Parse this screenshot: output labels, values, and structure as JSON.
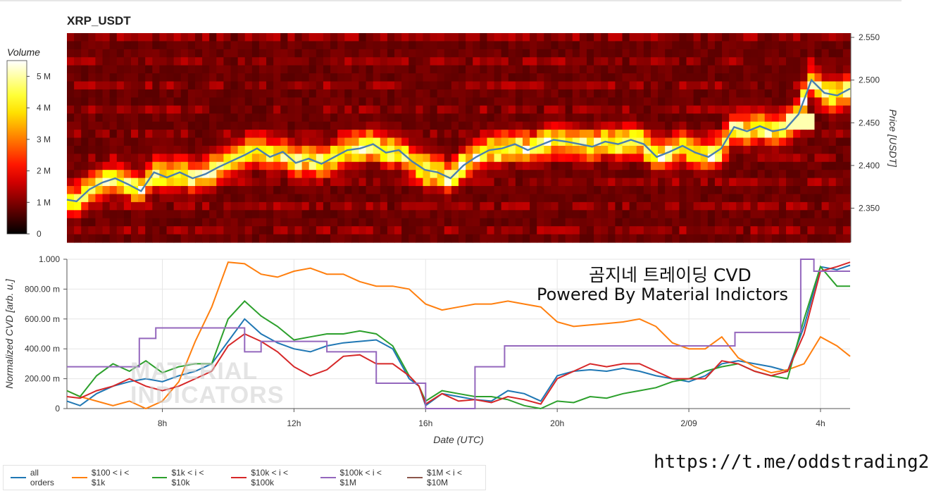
{
  "title": "XRP_USDT",
  "colorbar": {
    "title": "Volume",
    "ticks": [
      "5 M",
      "4 M",
      "3 M",
      "2 M",
      "1 M",
      "0"
    ],
    "tick_values": [
      5,
      4,
      3,
      2,
      1,
      0
    ]
  },
  "annotation": {
    "line1": "곰지네 트레이딩 CVD",
    "line2": "Powered By Material Indictors"
  },
  "watermark": {
    "line1": "MATERIAL",
    "line2": "INDICATORS"
  },
  "url": "https://t.me/oddstrading2",
  "colors": {
    "all_orders": "#1f77b4",
    "s100_1k": "#ff7f0e",
    "s1k_10k": "#2ca02c",
    "s10k_100k": "#d62728",
    "s100k_1m": "#9467bd",
    "s1m_10m": "#8c564b",
    "price_line": "#4a7fb0"
  },
  "chart_data": [
    {
      "type": "heatmap",
      "title": "XRP_USDT",
      "xlabel": "Date (UTC)",
      "ylabel": "Price [USDT]",
      "y_ticks": [
        "2.550",
        "2.500",
        "2.450",
        "2.400",
        "2.350"
      ],
      "y_tick_values": [
        2.55,
        2.5,
        2.45,
        2.4,
        2.35
      ],
      "ylim": [
        2.31,
        2.555
      ],
      "x_range_hours": [
        4.5,
        28.8
      ],
      "value_label": "Volume",
      "value_range": [
        0,
        5.5
      ],
      "series": [
        {
          "name": "price",
          "x": [
            4.5,
            4.8,
            5.2,
            5.6,
            6.0,
            6.4,
            6.8,
            7.2,
            7.6,
            8.0,
            8.4,
            8.8,
            9.2,
            9.6,
            10.0,
            10.4,
            10.8,
            11.2,
            11.6,
            12.0,
            12.4,
            12.8,
            13.2,
            13.6,
            14.0,
            14.4,
            14.8,
            15.2,
            15.6,
            16.0,
            16.4,
            16.8,
            17.2,
            17.6,
            18.0,
            18.4,
            18.8,
            19.2,
            19.6,
            20.0,
            20.4,
            20.8,
            21.2,
            21.6,
            22.0,
            22.4,
            22.8,
            23.2,
            23.6,
            24.0,
            24.4,
            24.8,
            25.2,
            25.6,
            26.0,
            26.4,
            26.8,
            27.2,
            27.6,
            28.0,
            28.4,
            28.8
          ],
          "y": [
            2.36,
            2.358,
            2.372,
            2.38,
            2.385,
            2.378,
            2.37,
            2.392,
            2.386,
            2.392,
            2.385,
            2.39,
            2.398,
            2.405,
            2.412,
            2.42,
            2.41,
            2.416,
            2.403,
            2.408,
            2.402,
            2.41,
            2.418,
            2.42,
            2.425,
            2.415,
            2.418,
            2.405,
            2.395,
            2.392,
            2.385,
            2.4,
            2.41,
            2.418,
            2.42,
            2.425,
            2.418,
            2.424,
            2.43,
            2.428,
            2.425,
            2.422,
            2.428,
            2.425,
            2.43,
            2.425,
            2.41,
            2.416,
            2.423,
            2.415,
            2.41,
            2.42,
            2.445,
            2.44,
            2.446,
            2.44,
            2.443,
            2.46,
            2.5,
            2.485,
            2.482,
            2.49
          ]
        }
      ]
    },
    {
      "type": "line",
      "xlabel": "Date (UTC)",
      "ylabel": "Normalized CVD [arb. u.]",
      "x_ticks": [
        "8h",
        "12h",
        "16h",
        "20h",
        "2/09",
        "4h"
      ],
      "x_tick_values": [
        8,
        12,
        16,
        20,
        24,
        28
      ],
      "y_ticks": [
        "1.000",
        "800.00 m",
        "600.00 m",
        "400.00 m",
        "200.00 m",
        "0"
      ],
      "y_tick_values": [
        1,
        0.8,
        0.6,
        0.4,
        0.2,
        0
      ],
      "ylim": [
        0,
        1
      ],
      "xlim": [
        5.1,
        28.9
      ],
      "grid": true,
      "legend_position": "bottom",
      "series": [
        {
          "name": "all orders",
          "key": "all_orders",
          "x": [
            5.1,
            5.5,
            6.0,
            6.5,
            7.0,
            7.5,
            8.0,
            8.5,
            9.0,
            9.5,
            10.0,
            10.5,
            11.0,
            11.5,
            12.0,
            12.5,
            13.0,
            13.5,
            14.0,
            14.5,
            15.0,
            15.5,
            15.8,
            16.0,
            16.5,
            17.0,
            17.5,
            18.0,
            18.5,
            19.0,
            19.5,
            20.0,
            20.5,
            21.0,
            21.5,
            22.0,
            22.5,
            23.0,
            23.5,
            24.0,
            24.5,
            25.0,
            25.5,
            26.0,
            26.5,
            27.0,
            27.5,
            28.0,
            28.5,
            28.9
          ],
          "y": [
            0.05,
            0.02,
            0.1,
            0.15,
            0.18,
            0.2,
            0.18,
            0.22,
            0.25,
            0.3,
            0.45,
            0.6,
            0.5,
            0.44,
            0.4,
            0.38,
            0.42,
            0.44,
            0.45,
            0.46,
            0.4,
            0.2,
            0.15,
            0.02,
            0.1,
            0.08,
            0.06,
            0.05,
            0.12,
            0.1,
            0.05,
            0.22,
            0.25,
            0.26,
            0.25,
            0.27,
            0.25,
            0.22,
            0.2,
            0.18,
            0.22,
            0.3,
            0.32,
            0.3,
            0.28,
            0.25,
            0.55,
            0.95,
            0.93,
            0.96
          ]
        },
        {
          "name": "$100 < i < $1k",
          "key": "s100_1k",
          "x": [
            5.1,
            5.5,
            6.0,
            6.5,
            7.0,
            7.5,
            8.0,
            8.5,
            9.0,
            9.5,
            10.0,
            10.5,
            11.0,
            11.5,
            12.0,
            12.5,
            13.0,
            13.5,
            14.0,
            14.5,
            15.0,
            15.5,
            16.0,
            16.5,
            17.0,
            17.5,
            18.0,
            18.5,
            19.0,
            19.5,
            20.0,
            20.5,
            21.0,
            21.5,
            22.0,
            22.5,
            23.0,
            23.5,
            24.0,
            24.5,
            25.0,
            25.5,
            26.0,
            26.5,
            27.0,
            27.5,
            28.0,
            28.5,
            28.9
          ],
          "y": [
            0.12,
            0.08,
            0.05,
            0.02,
            0.05,
            0.0,
            0.05,
            0.18,
            0.45,
            0.68,
            0.98,
            0.97,
            0.9,
            0.88,
            0.92,
            0.94,
            0.9,
            0.9,
            0.85,
            0.82,
            0.82,
            0.8,
            0.7,
            0.66,
            0.68,
            0.7,
            0.7,
            0.72,
            0.7,
            0.68,
            0.58,
            0.55,
            0.56,
            0.57,
            0.58,
            0.6,
            0.55,
            0.44,
            0.4,
            0.4,
            0.48,
            0.34,
            0.28,
            0.24,
            0.26,
            0.3,
            0.48,
            0.42,
            0.35
          ]
        },
        {
          "name": "$1k < i < $10k",
          "key": "s1k_10k",
          "x": [
            5.1,
            5.5,
            6.0,
            6.5,
            7.0,
            7.5,
            8.0,
            8.5,
            9.0,
            9.5,
            10.0,
            10.5,
            11.0,
            11.5,
            12.0,
            12.5,
            13.0,
            13.5,
            14.0,
            14.5,
            15.0,
            15.5,
            15.8,
            16.0,
            16.5,
            17.0,
            17.5,
            18.0,
            18.5,
            19.0,
            19.5,
            20.0,
            20.5,
            21.0,
            21.5,
            22.0,
            22.5,
            23.0,
            23.5,
            24.0,
            24.5,
            25.0,
            25.5,
            26.0,
            26.5,
            27.0,
            27.5,
            28.0,
            28.5,
            28.9
          ],
          "y": [
            0.12,
            0.08,
            0.22,
            0.3,
            0.25,
            0.32,
            0.24,
            0.28,
            0.3,
            0.3,
            0.6,
            0.72,
            0.62,
            0.55,
            0.46,
            0.48,
            0.5,
            0.5,
            0.52,
            0.5,
            0.42,
            0.22,
            0.15,
            0.05,
            0.12,
            0.1,
            0.08,
            0.08,
            0.06,
            0.02,
            0.0,
            0.05,
            0.04,
            0.08,
            0.07,
            0.1,
            0.12,
            0.14,
            0.18,
            0.2,
            0.25,
            0.28,
            0.3,
            0.25,
            0.22,
            0.2,
            0.6,
            0.95,
            0.82,
            0.82
          ]
        },
        {
          "name": "$10k < i < $100k",
          "key": "s10k_100k",
          "x": [
            5.1,
            5.5,
            6.0,
            6.5,
            7.0,
            7.5,
            8.0,
            8.5,
            9.0,
            9.5,
            10.0,
            10.5,
            11.0,
            11.5,
            12.0,
            12.5,
            13.0,
            13.5,
            14.0,
            14.5,
            15.0,
            15.5,
            15.8,
            16.0,
            16.5,
            17.0,
            17.5,
            18.0,
            18.5,
            19.0,
            19.5,
            20.0,
            20.5,
            21.0,
            21.5,
            22.0,
            22.5,
            23.0,
            23.5,
            24.0,
            24.5,
            25.0,
            25.5,
            26.0,
            26.5,
            27.0,
            27.5,
            28.0,
            28.5,
            28.9
          ],
          "y": [
            0.08,
            0.07,
            0.12,
            0.15,
            0.2,
            0.15,
            0.12,
            0.15,
            0.2,
            0.25,
            0.42,
            0.5,
            0.45,
            0.38,
            0.28,
            0.22,
            0.26,
            0.35,
            0.36,
            0.3,
            0.3,
            0.22,
            0.15,
            0.03,
            0.1,
            0.05,
            0.06,
            0.04,
            0.08,
            0.06,
            0.03,
            0.2,
            0.25,
            0.3,
            0.28,
            0.3,
            0.3,
            0.25,
            0.2,
            0.2,
            0.2,
            0.32,
            0.3,
            0.25,
            0.22,
            0.25,
            0.5,
            0.92,
            0.95,
            0.98
          ]
        },
        {
          "name": "$100k < i < $1M",
          "key": "s100k_1m",
          "x": [
            5.1,
            7.3,
            7.3,
            7.8,
            7.8,
            10.5,
            10.5,
            11.0,
            11.0,
            13.0,
            13.0,
            14.5,
            14.5,
            15.5,
            15.5,
            16.0,
            16.0,
            17.0,
            17.0,
            17.5,
            17.5,
            18.4,
            18.4,
            20.5,
            20.5,
            25.4,
            25.4,
            27.4,
            27.4,
            27.8,
            27.8,
            28.9
          ],
          "y": [
            0.28,
            0.28,
            0.47,
            0.47,
            0.54,
            0.54,
            0.38,
            0.38,
            0.45,
            0.45,
            0.38,
            0.38,
            0.17,
            0.17,
            0.17,
            0.17,
            0.0,
            0.0,
            0.0,
            0.0,
            0.28,
            0.28,
            0.42,
            0.42,
            0.42,
            0.42,
            0.51,
            0.51,
            1.0,
            1.0,
            0.92,
            0.92
          ]
        },
        {
          "name": "$1M < i < $10M",
          "key": "s1m_10m",
          "x": [],
          "y": []
        }
      ]
    }
  ]
}
